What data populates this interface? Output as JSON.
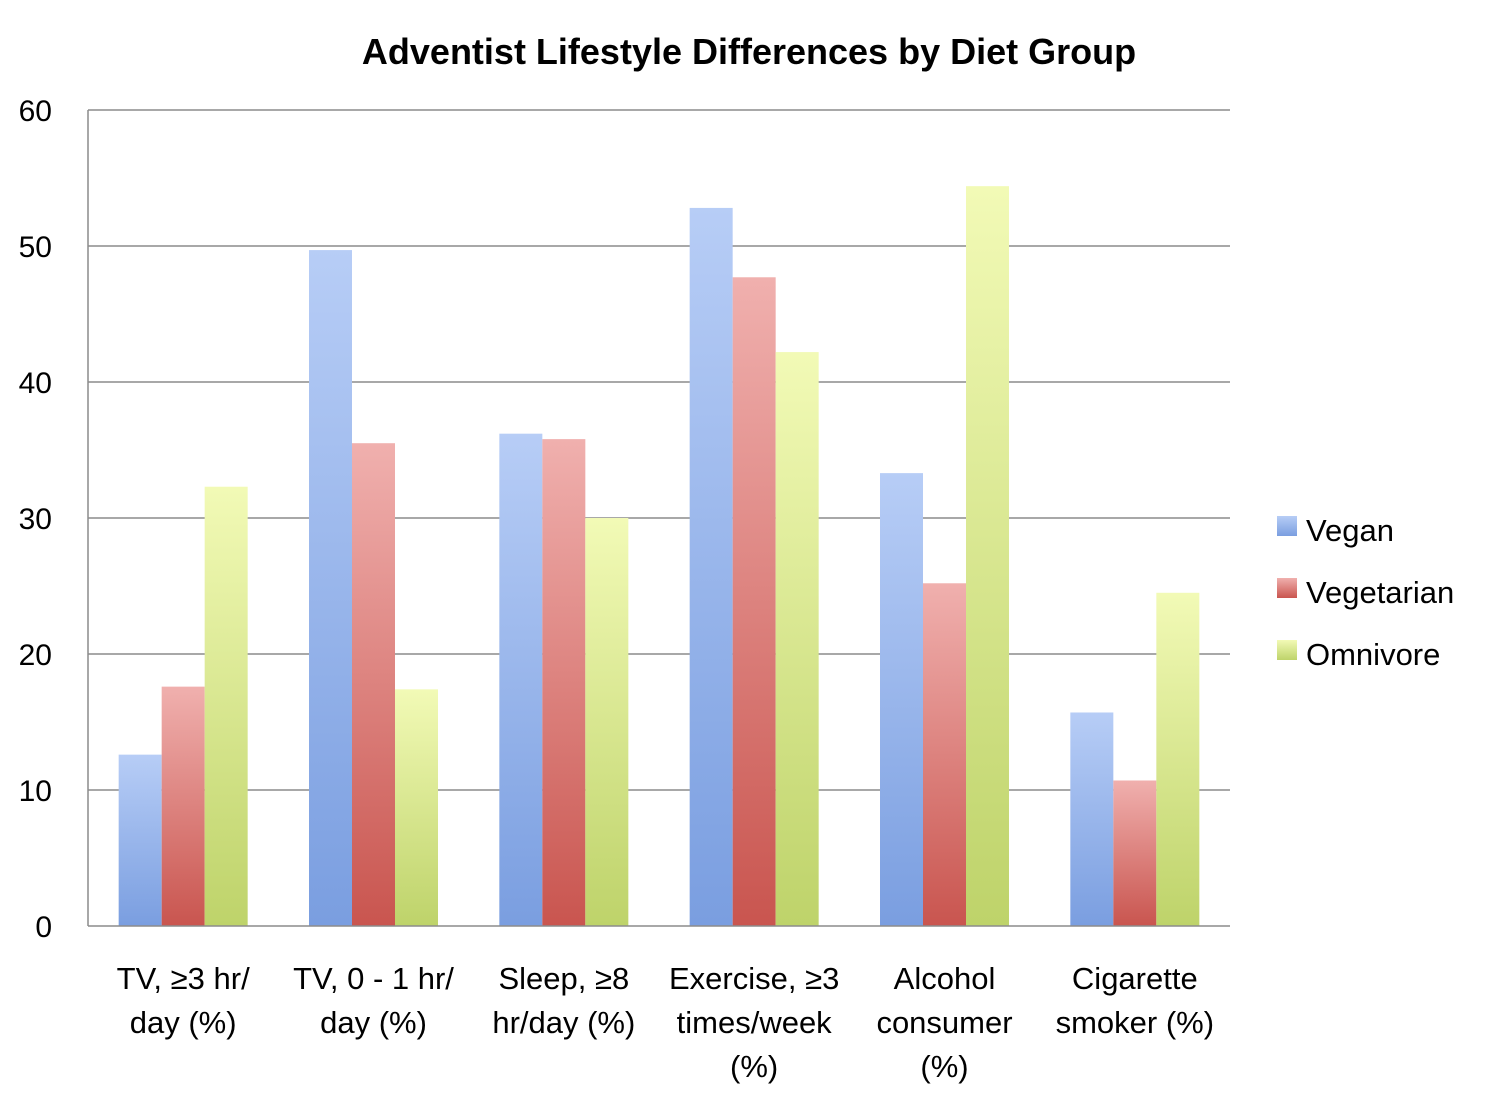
{
  "chart_data": {
    "type": "bar",
    "title": "Adventist Lifestyle Differences by Diet Group",
    "xlabel": "",
    "ylabel": "",
    "ylim": [
      0,
      60
    ],
    "yticks": [
      0,
      10,
      20,
      30,
      40,
      50,
      60
    ],
    "grid": true,
    "legend_position": "right",
    "categories": [
      [
        "TV, ≥3 hr/",
        "day (%)"
      ],
      [
        "TV, 0 - 1 hr/",
        "day (%)"
      ],
      [
        "Sleep, ≥8",
        "hr/day (%)"
      ],
      [
        "Exercise, ≥3",
        "times/week",
        "(%)"
      ],
      [
        "Alcohol",
        "consumer",
        "(%)"
      ],
      [
        "Cigarette",
        "smoker (%)"
      ]
    ],
    "series": [
      {
        "name": "Vegan",
        "values": [
          12.6,
          49.7,
          36.2,
          52.8,
          33.3,
          15.7
        ],
        "color": "#7A9EE0",
        "color_light": "#B7CDF6"
      },
      {
        "name": "Vegetarian",
        "values": [
          17.6,
          35.5,
          35.8,
          47.7,
          25.2,
          10.7
        ],
        "color": "#C9554F",
        "color_light": "#F0B0AE"
      },
      {
        "name": "Omnivore",
        "values": [
          32.3,
          17.4,
          30.0,
          42.2,
          54.4,
          24.5
        ],
        "color": "#BED36A",
        "color_light": "#F2FAB6"
      }
    ]
  }
}
